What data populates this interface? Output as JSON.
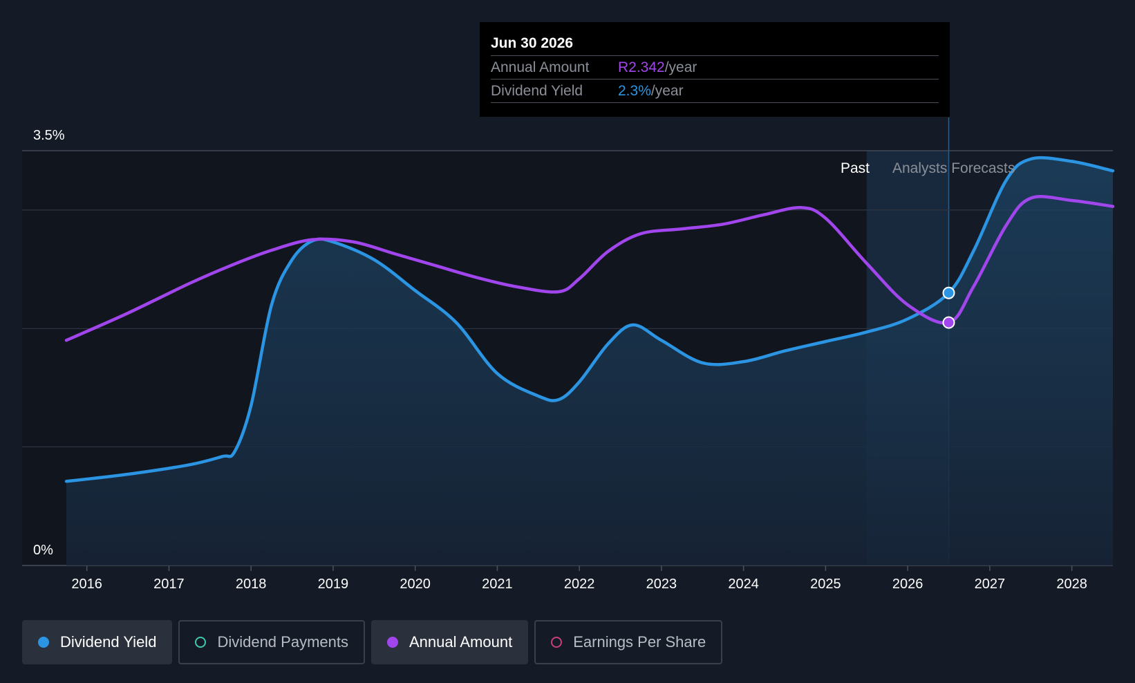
{
  "colors": {
    "yield": "#2b95e3",
    "amount": "#a146ec",
    "payments": "#3fc9b0",
    "eps": "#c73f79",
    "background": "#151b26"
  },
  "tooltip": {
    "date": "Jun 30 2026",
    "rows": [
      {
        "label": "Annual Amount",
        "value": "R2.342",
        "unit": "/year",
        "color": "#a146ec"
      },
      {
        "label": "Dividend Yield",
        "value": "2.3%",
        "unit": "/year",
        "color": "#2b95e3"
      }
    ]
  },
  "legend": [
    {
      "label": "Dividend Yield",
      "color": "#2b95e3",
      "active": true
    },
    {
      "label": "Dividend Payments",
      "color": "#3fc9b0",
      "active": false
    },
    {
      "label": "Annual Amount",
      "color": "#a146ec",
      "active": true
    },
    {
      "label": "Earnings Per Share",
      "color": "#c73f79",
      "active": false
    }
  ],
  "chart_data": {
    "type": "line",
    "y_top_label": "3.5%",
    "y_bottom_label": "0%",
    "ylim": [
      0,
      3.5
    ],
    "xlim": [
      2015.75,
      2028.5
    ],
    "x_ticks": [
      "2016",
      "2017",
      "2018",
      "2019",
      "2020",
      "2021",
      "2022",
      "2023",
      "2024",
      "2025",
      "2026",
      "2027",
      "2028"
    ],
    "grid": true,
    "past_label": "Past",
    "forecast_label": "Analysts Forecasts",
    "forecast_start": 2025.5,
    "highlight_x": 2026.5,
    "series": [
      {
        "name": "Dividend Yield",
        "filled": true,
        "points": [
          [
            2015.75,
            0.71
          ],
          [
            2016.5,
            0.77
          ],
          [
            2017.25,
            0.85
          ],
          [
            2017.65,
            0.92
          ],
          [
            2017.8,
            0.96
          ],
          [
            2018.0,
            1.35
          ],
          [
            2018.25,
            2.2
          ],
          [
            2018.5,
            2.58
          ],
          [
            2018.75,
            2.74
          ],
          [
            2019.0,
            2.73
          ],
          [
            2019.5,
            2.58
          ],
          [
            2020.0,
            2.32
          ],
          [
            2020.5,
            2.05
          ],
          [
            2021.0,
            1.62
          ],
          [
            2021.5,
            1.43
          ],
          [
            2021.75,
            1.4
          ],
          [
            2022.0,
            1.55
          ],
          [
            2022.35,
            1.87
          ],
          [
            2022.65,
            2.03
          ],
          [
            2023.0,
            1.9
          ],
          [
            2023.5,
            1.71
          ],
          [
            2024.0,
            1.72
          ],
          [
            2024.5,
            1.81
          ],
          [
            2025.0,
            1.89
          ],
          [
            2025.5,
            1.97
          ],
          [
            2026.0,
            2.08
          ],
          [
            2026.5,
            2.3
          ],
          [
            2026.8,
            2.65
          ],
          [
            2027.2,
            3.25
          ],
          [
            2027.5,
            3.43
          ],
          [
            2028.0,
            3.41
          ],
          [
            2028.5,
            3.33
          ]
        ]
      },
      {
        "name": "Annual Amount",
        "filled": false,
        "points": [
          [
            2015.75,
            1.9
          ],
          [
            2016.5,
            2.13
          ],
          [
            2017.25,
            2.38
          ],
          [
            2017.75,
            2.53
          ],
          [
            2018.25,
            2.66
          ],
          [
            2018.75,
            2.75
          ],
          [
            2019.25,
            2.73
          ],
          [
            2019.75,
            2.63
          ],
          [
            2020.25,
            2.53
          ],
          [
            2020.75,
            2.43
          ],
          [
            2021.25,
            2.35
          ],
          [
            2021.75,
            2.31
          ],
          [
            2022.0,
            2.42
          ],
          [
            2022.35,
            2.65
          ],
          [
            2022.75,
            2.8
          ],
          [
            2023.25,
            2.84
          ],
          [
            2023.75,
            2.88
          ],
          [
            2024.25,
            2.96
          ],
          [
            2024.7,
            3.02
          ],
          [
            2025.0,
            2.93
          ],
          [
            2025.5,
            2.55
          ],
          [
            2026.0,
            2.2
          ],
          [
            2026.5,
            2.05
          ],
          [
            2026.8,
            2.35
          ],
          [
            2027.2,
            2.87
          ],
          [
            2027.5,
            3.1
          ],
          [
            2028.0,
            3.08
          ],
          [
            2028.5,
            3.03
          ]
        ]
      }
    ],
    "highlight_values": {
      "Dividend Yield": 2.3,
      "Annual Amount": 2.05
    }
  }
}
